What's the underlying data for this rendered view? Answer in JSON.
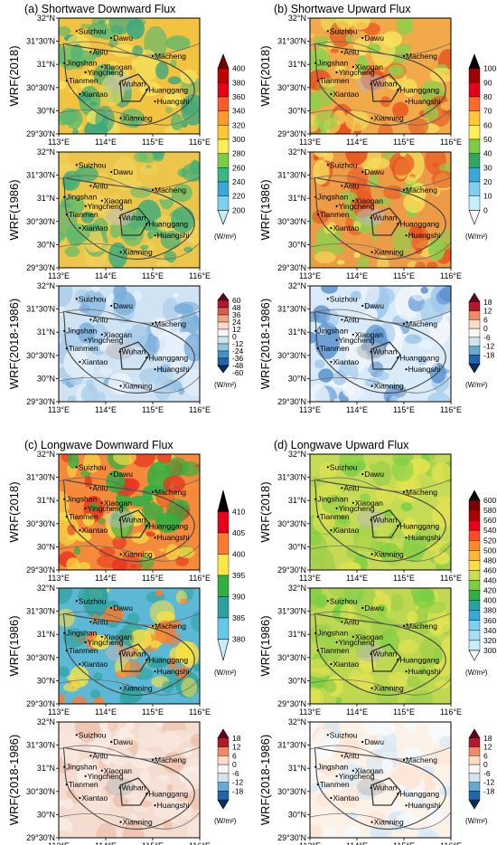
{
  "figure": {
    "panel_titles": [
      "(a) Shortwave Downward Flux",
      "(b) Shortwave Upward Flux",
      "(c) Longwave Downward Flux",
      "(d) Longwave Upward Flux"
    ],
    "row_labels": [
      "WRF(2018)",
      "WRF(1986)",
      "WRF(2018-1986)"
    ],
    "lat_ticks": [
      "32°N",
      "31°30'N",
      "31°N",
      "30°30'N",
      "30°N",
      "29°30'N"
    ],
    "lon_ticks": [
      "113°E",
      "114°E",
      "115°E",
      "116°E"
    ],
    "unit_label": "(W/m²)",
    "cities": [
      {
        "name": "Suizhou",
        "lon": 113.38,
        "lat": 31.72
      },
      {
        "name": "Dawu",
        "lon": 114.12,
        "lat": 31.57
      },
      {
        "name": "Anlu",
        "lon": 113.68,
        "lat": 31.27
      },
      {
        "name": "Jingshan",
        "lon": 113.12,
        "lat": 31.03
      },
      {
        "name": "Xiaogan",
        "lon": 113.92,
        "lat": 30.95
      },
      {
        "name": "Macheng",
        "lon": 115.0,
        "lat": 31.18
      },
      {
        "name": "Yingcheng",
        "lon": 113.57,
        "lat": 30.83
      },
      {
        "name": "Tianmen",
        "lon": 113.17,
        "lat": 30.65
      },
      {
        "name": "Xiantao",
        "lon": 113.45,
        "lat": 30.36
      },
      {
        "name": "Wuhan",
        "lon": 114.3,
        "lat": 30.58
      },
      {
        "name": "Huanggang",
        "lon": 114.87,
        "lat": 30.45
      },
      {
        "name": "Huangshi",
        "lon": 115.05,
        "lat": 30.2
      },
      {
        "name": "Xianning",
        "lon": 114.32,
        "lat": 29.84
      }
    ],
    "colorbars": [
      {
        "panel": "a",
        "row": "top",
        "labels": [
          "400",
          "380",
          "360",
          "340",
          "320",
          "300",
          "280",
          "260",
          "240",
          "220",
          "200"
        ],
        "colors": [
          "#7a0000",
          "#c00000",
          "#e8001a",
          "#ff5a28",
          "#ff9a2a",
          "#ffc833",
          "#ffee55",
          "#7ccf44",
          "#38b888",
          "#38a9d8",
          "#7fd0f0",
          "#c6eefc"
        ]
      },
      {
        "panel": "a",
        "row": "diff",
        "labels": [
          "60",
          "48",
          "36",
          "24",
          "12",
          "0",
          "-12",
          "-24",
          "-36",
          "-48",
          "-60"
        ],
        "colors": [
          "#67001f",
          "#b2182b",
          "#d6604d",
          "#f4a582",
          "#fddbc7",
          "#f7f7f7",
          "#d1e5f0",
          "#92c5de",
          "#4393c3",
          "#2166ac",
          "#053061"
        ]
      },
      {
        "panel": "b",
        "row": "top",
        "labels": [
          "100",
          "90",
          "80",
          "70",
          "60",
          "50",
          "40",
          "30",
          "20",
          "10",
          "0"
        ],
        "colors": [
          "#000000",
          "#a00000",
          "#e8001a",
          "#ff6a2a",
          "#ffc833",
          "#ffee55",
          "#7ccf44",
          "#2fa860",
          "#38a9d8",
          "#7fd0f0",
          "#c6eefc",
          "#ffffff"
        ]
      },
      {
        "panel": "b",
        "row": "diff",
        "labels": [
          "18",
          "12",
          "6",
          "0",
          "-6",
          "-12",
          "-18"
        ],
        "colors": [
          "#67001f",
          "#b2182b",
          "#ef8a62",
          "#fddbc7",
          "#f7f7f7",
          "#d1e5f0",
          "#67a9cf",
          "#2166ac",
          "#053061"
        ]
      },
      {
        "panel": "c",
        "row": "top",
        "labels": [
          "410",
          "405",
          "400",
          "395",
          "390",
          "385",
          "380"
        ],
        "colors": [
          "#000000",
          "#e8001a",
          "#ff7a2a",
          "#ffe844",
          "#2fb040",
          "#2aa3a0",
          "#66c8e8",
          "#c6eefc"
        ]
      },
      {
        "panel": "c",
        "row": "diff",
        "labels": [
          "18",
          "12",
          "6",
          "0",
          "-6",
          "-12",
          "-18"
        ],
        "colors": [
          "#67001f",
          "#b2182b",
          "#ef8a62",
          "#fddbc7",
          "#f7f7f7",
          "#d1e5f0",
          "#67a9cf",
          "#2166ac",
          "#053061"
        ]
      },
      {
        "panel": "d",
        "row": "top",
        "labels": [
          "600",
          "580",
          "560",
          "540",
          "520",
          "500",
          "480",
          "460",
          "440",
          "420",
          "400",
          "380",
          "360",
          "340",
          "320",
          "300"
        ],
        "colors": [
          "#000000",
          "#7a0000",
          "#b00000",
          "#e8001a",
          "#ff4a28",
          "#ff8a2a",
          "#ffb833",
          "#ffe044",
          "#c8e050",
          "#7ccf44",
          "#2fb040",
          "#2aa3a0",
          "#38a9d8",
          "#7fd0f0",
          "#a8e0f6",
          "#c6eefc",
          "#ffffff"
        ]
      },
      {
        "panel": "d",
        "row": "diff",
        "labels": [
          "18",
          "12",
          "6",
          "0",
          "-6",
          "-12",
          "-18"
        ],
        "colors": [
          "#67001f",
          "#b2182b",
          "#ef8a62",
          "#fddbc7",
          "#f7f7f7",
          "#d1e5f0",
          "#67a9cf",
          "#2166ac",
          "#053061"
        ]
      }
    ]
  }
}
